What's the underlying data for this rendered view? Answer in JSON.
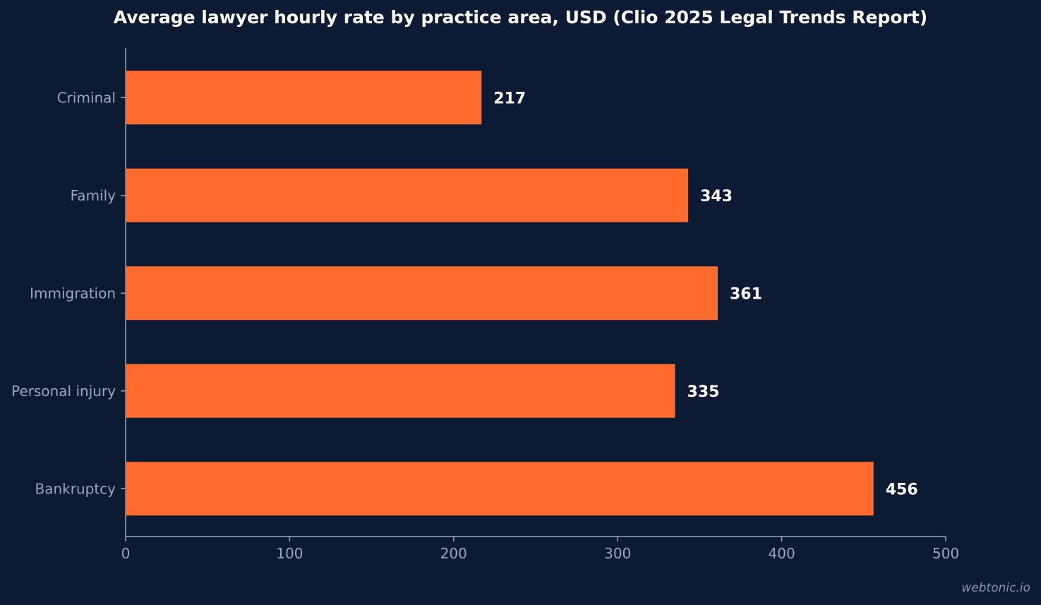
{
  "chart_data": {
    "type": "bar",
    "orientation": "horizontal",
    "title": "Average lawyer hourly rate by practice area, USD (Clio 2025 Legal Trends Report)",
    "categories": [
      "Criminal",
      "Family",
      "Immigration",
      "Personal injury",
      "Bankruptcy"
    ],
    "values": [
      217,
      343,
      361,
      335,
      456
    ],
    "data_labels": [
      "217",
      "343",
      "361",
      "335",
      "456"
    ],
    "xlim": [
      0,
      500
    ],
    "xticks": [
      0,
      100,
      200,
      300,
      400,
      500
    ],
    "xtick_labels": [
      "0",
      "100",
      "200",
      "300",
      "400",
      "500"
    ],
    "grid": false,
    "legend": "none",
    "bar_color": "#ff6b2c",
    "background_color": "#0c1b33"
  },
  "watermark": "webtonic.io"
}
